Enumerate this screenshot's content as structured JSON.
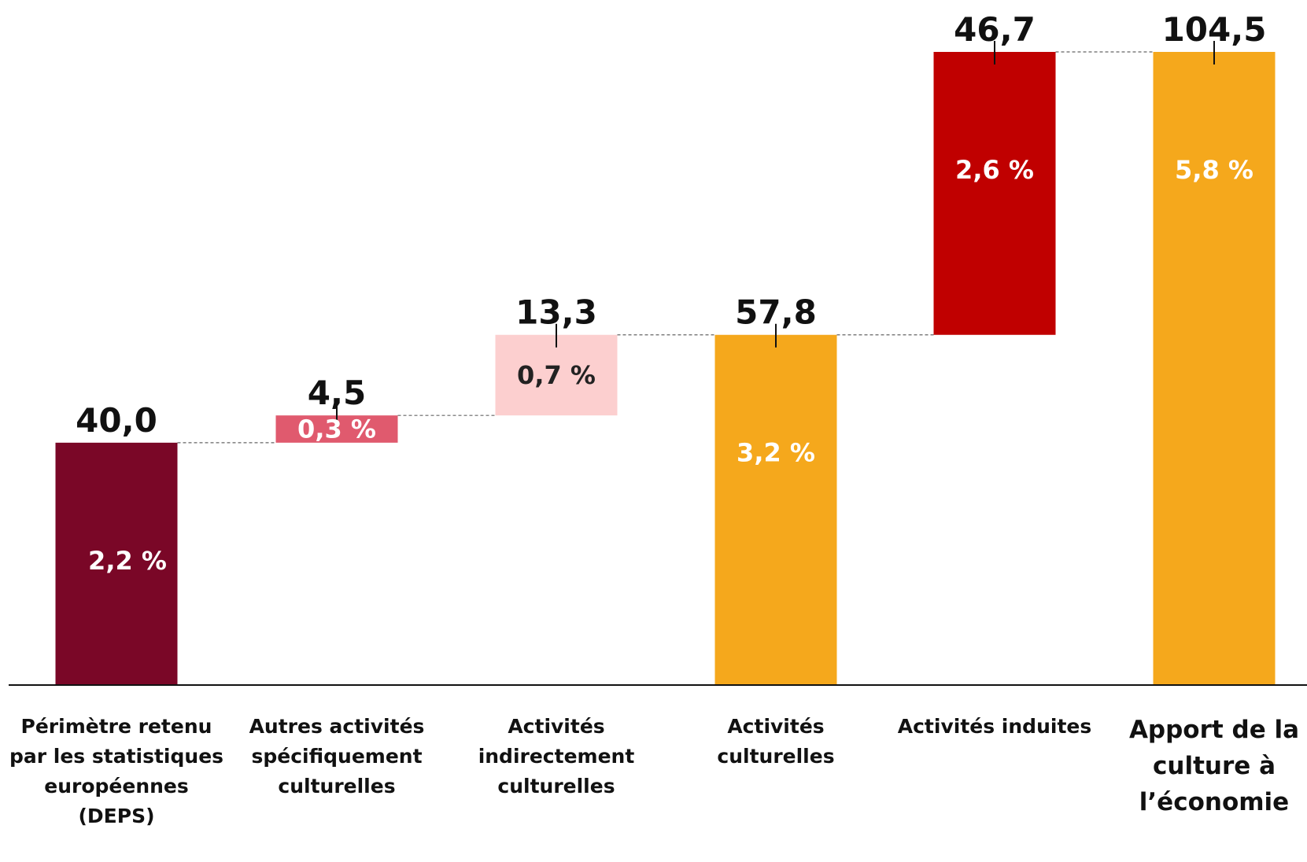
{
  "chart_data": {
    "type": "waterfall",
    "categories": [
      "Périmètre retenu par les statistiques européennes (DEPS)",
      "Autres activités spécifiquement culturelles",
      "Activités indirectement culturelles",
      "Activités culturelles",
      "Activités induites",
      "Apport de la culture à l’économie"
    ],
    "values": [
      40.0,
      4.5,
      13.3,
      57.8,
      46.7,
      104.5
    ],
    "value_labels": [
      "40,0",
      "4,5",
      "13,3",
      "57,8",
      "46,7",
      "104,5"
    ],
    "shares": [
      2.2,
      0.3,
      0.7,
      3.2,
      2.6,
      5.8
    ],
    "share_labels": [
      "2,2 %",
      "0,3 %",
      "0,7 %",
      "3,2 %",
      "2,6 %",
      "5,8 %"
    ],
    "is_total": [
      false,
      false,
      false,
      true,
      false,
      true
    ],
    "colors": [
      "#7a0727",
      "#e05a6e",
      "#fccfcf",
      "#f5a81c",
      "#c00000",
      "#f5a81c"
    ],
    "share_label_colors": [
      "#ffffff",
      "#ffffff",
      "#222222",
      "#ffffff",
      "#ffffff",
      "#ffffff"
    ]
  }
}
